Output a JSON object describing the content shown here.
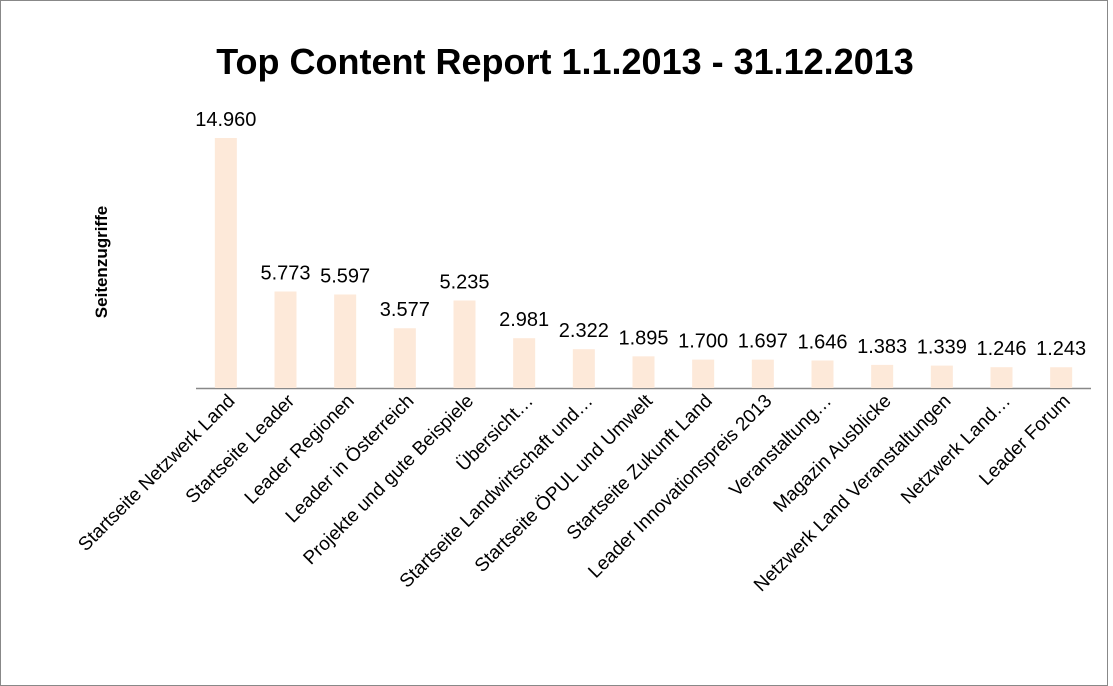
{
  "chart_data": {
    "type": "bar",
    "title": "Top Content Report 1.1.2013 - 31.12.2013",
    "y_label": "Seitenzugriffe",
    "categories": [
      "Startseite Netzwerk Land",
      "Startseite Leader",
      "Leader Regionen",
      "Leader in Österreich",
      "Projekte und gute Beispiele",
      "Übersicht…",
      "Startseite Landwirtschaft und…",
      "Startseite ÖPUL und Umwelt",
      "Startseite Zukunft Land",
      "Leader Innovationspreis 2013",
      "Veranstaltung…",
      "Magazin Ausblicke",
      "Netzwerk Land Veranstaltungen",
      "Netzwerk Land…",
      "Leader Forum"
    ],
    "values": [
      14960,
      5773,
      5597,
      3577,
      5235,
      2981,
      2322,
      1895,
      1700,
      1697,
      1646,
      1383,
      1339,
      1246,
      1243
    ],
    "value_labels": [
      "14.960",
      "5.773",
      "5.597",
      "3.577",
      "5.235",
      "2.981",
      "2.322",
      "1.895",
      "1.700",
      "1.697",
      "1.646",
      "1.383",
      "1.339",
      "1.246",
      "1.243"
    ],
    "color": "#fde9d9"
  }
}
